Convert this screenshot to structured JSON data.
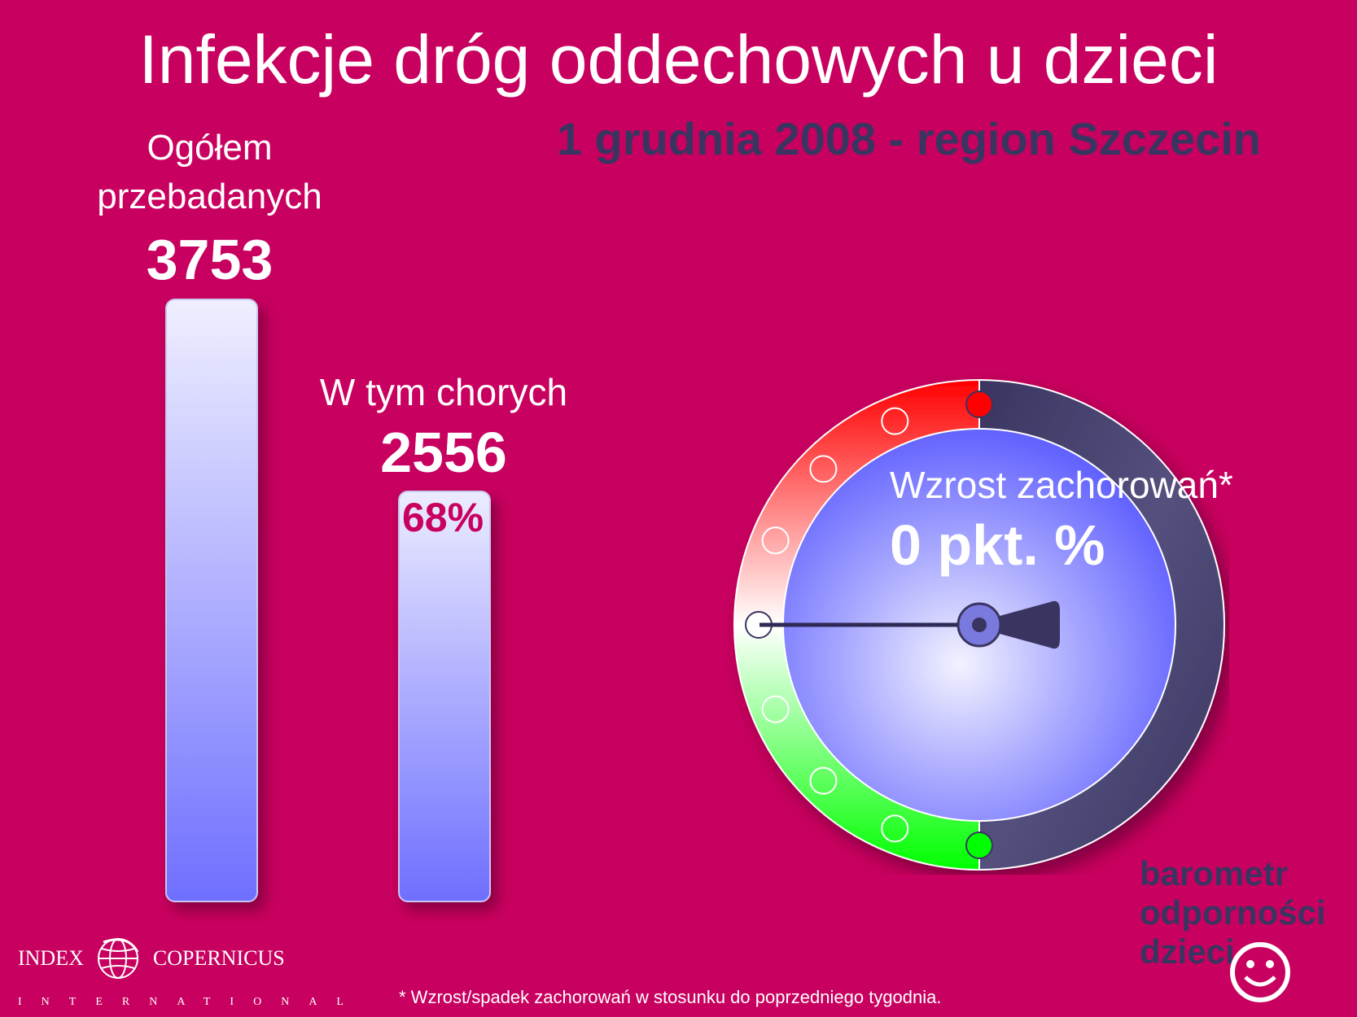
{
  "title": "Infekcje dróg oddechowych u dzieci",
  "subtitle": "1 grudnia 2008 - region Szczecin",
  "total": {
    "label": "Ogółem przebadanych",
    "value": "3753"
  },
  "sick": {
    "label": "W tym chorych",
    "value": "2556",
    "percent": "68%"
  },
  "gauge": {
    "label": "Wzrost zachorowań*",
    "value_text": "0 pkt. %",
    "value": 0,
    "colors": {
      "top": "#ff0000",
      "middle": "#ffffff",
      "bottom": "#00ff00",
      "right": "#3a3560",
      "dial": "#6f6fff"
    }
  },
  "brand": {
    "line1": "barometr",
    "line2": "odporności",
    "line3": "dzieci"
  },
  "logo": {
    "left": "INDEX",
    "right": "COPERNICUS",
    "sub": "INTERNATIONAL"
  },
  "footnote": "* Wzrost/spadek zachorowań w stosunku do poprzedniego tygodnia.",
  "colors": {
    "background": "#c8005f",
    "accent_dark": "#3a3560"
  }
}
